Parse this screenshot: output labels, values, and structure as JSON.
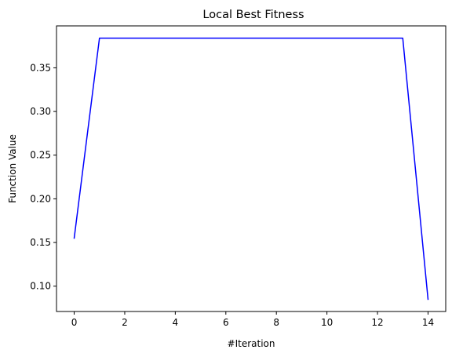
{
  "chart_data": {
    "type": "line",
    "title": "Local Best Fitness",
    "xlabel": "#Iteration",
    "ylabel": "Function Value",
    "xlim": [
      -0.7,
      14.7
    ],
    "ylim": [
      0.071,
      0.398
    ],
    "xticks": [
      0,
      2,
      4,
      6,
      8,
      10,
      12,
      14
    ],
    "yticks": [
      0.1,
      0.15,
      0.2,
      0.25,
      0.3,
      0.35
    ],
    "ytick_labels": [
      "0.10",
      "0.15",
      "0.20",
      "0.25",
      "0.30",
      "0.35"
    ],
    "grid": false,
    "series": [
      {
        "color": "#0000ff",
        "x": [
          0,
          1,
          2,
          3,
          4,
          5,
          6,
          7,
          8,
          9,
          10,
          11,
          12,
          13,
          14
        ],
        "values": [
          0.155,
          0.384,
          0.384,
          0.384,
          0.384,
          0.384,
          0.384,
          0.384,
          0.384,
          0.384,
          0.384,
          0.384,
          0.384,
          0.384,
          0.085
        ]
      }
    ]
  }
}
